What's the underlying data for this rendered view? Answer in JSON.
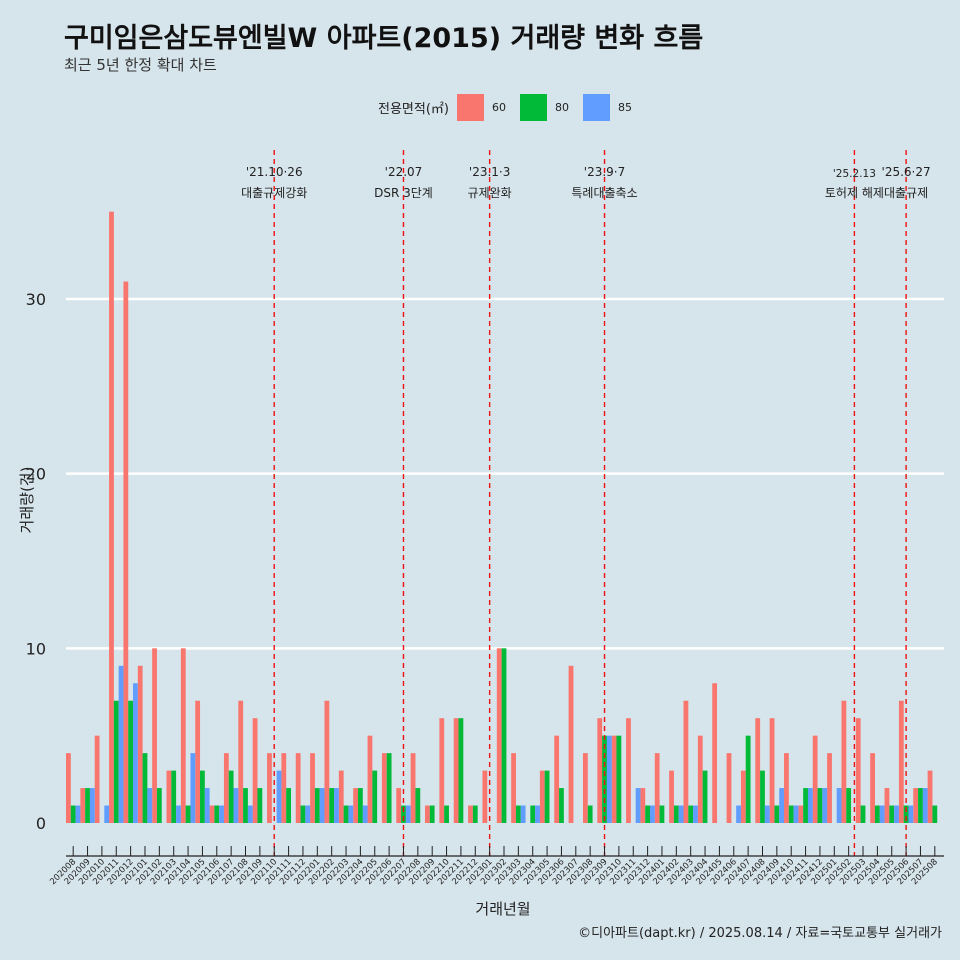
{
  "header": {
    "title": "구미임은삼도뷰엔빌W 아파트(2015) 거래량 변화 흐름",
    "subtitle": "최근 5년 한정 확대 차트"
  },
  "legend": {
    "title": "전용면적(㎡)",
    "items": [
      {
        "label": "60",
        "color": "#f8766d"
      },
      {
        "label": "80",
        "color": "#00ba38"
      },
      {
        "label": "85",
        "color": "#619cff"
      }
    ]
  },
  "caption": "©디아파트(dapt.kr) / 2025.08.14 / 자료=국토교통부 실거래가",
  "chart_data": {
    "type": "bar",
    "xlabel": "거래년월",
    "ylabel": "거래량(건)",
    "ylim": [
      0,
      36
    ],
    "yticks": [
      0,
      10,
      20,
      30
    ],
    "grid": true,
    "legend_position": "top",
    "categories": [
      "202008",
      "202009",
      "202010",
      "202011",
      "202012",
      "202101",
      "202102",
      "202103",
      "202104",
      "202105",
      "202106",
      "202107",
      "202108",
      "202109",
      "202110",
      "202111",
      "202112",
      "202201",
      "202202",
      "202203",
      "202204",
      "202205",
      "202206",
      "202207",
      "202208",
      "202209",
      "202210",
      "202211",
      "202212",
      "202301",
      "202302",
      "202303",
      "202304",
      "202305",
      "202306",
      "202307",
      "202308",
      "202309",
      "202310",
      "202311",
      "202312",
      "202401",
      "202402",
      "202403",
      "202404",
      "202405",
      "202406",
      "202407",
      "202408",
      "202409",
      "202410",
      "202411",
      "202412",
      "202501",
      "202502",
      "202503",
      "202504",
      "202505",
      "202506",
      "202507",
      "202508"
    ],
    "series": [
      {
        "name": "60",
        "color": "#f8766d",
        "values": [
          4,
          2,
          5,
          35,
          31,
          9,
          10,
          3,
          10,
          7,
          1,
          4,
          7,
          6,
          4,
          4,
          4,
          4,
          7,
          3,
          2,
          5,
          4,
          2,
          4,
          1,
          6,
          6,
          1,
          3,
          10,
          4,
          0,
          3,
          5,
          9,
          4,
          6,
          5,
          6,
          2,
          4,
          3,
          7,
          5,
          8,
          4,
          3,
          6,
          6,
          4,
          1,
          5,
          4,
          7,
          6,
          4,
          2,
          7,
          2,
          3
        ]
      },
      {
        "name": "80",
        "color": "#00ba38",
        "values": [
          1,
          2,
          0,
          7,
          7,
          4,
          2,
          3,
          1,
          3,
          1,
          3,
          2,
          2,
          0,
          2,
          1,
          2,
          2,
          1,
          2,
          3,
          4,
          1,
          2,
          1,
          1,
          6,
          1,
          0,
          10,
          1,
          1,
          3,
          2,
          0,
          1,
          5,
          5,
          0,
          1,
          1,
          1,
          1,
          3,
          0,
          0,
          5,
          3,
          1,
          1,
          2,
          2,
          0,
          2,
          1,
          1,
          1,
          1,
          2,
          1
        ]
      },
      {
        "name": "85",
        "color": "#619cff",
        "values": [
          1,
          2,
          1,
          9,
          8,
          2,
          0,
          1,
          4,
          2,
          1,
          2,
          1,
          0,
          3,
          0,
          1,
          2,
          2,
          1,
          1,
          0,
          0,
          1,
          0,
          0,
          0,
          0,
          0,
          0,
          0,
          1,
          1,
          0,
          0,
          0,
          0,
          5,
          0,
          2,
          1,
          0,
          1,
          1,
          0,
          0,
          1,
          0,
          1,
          2,
          1,
          2,
          2,
          2,
          0,
          0,
          1,
          1,
          1,
          2,
          0
        ]
      }
    ],
    "annotations": [
      {
        "label": "'21.10·26",
        "text": "대출규제강화",
        "at": "202110"
      },
      {
        "label": "'22.07",
        "text": "DSR 3단계",
        "at": "202207"
      },
      {
        "label": "'23.1·3",
        "text": "규제완화",
        "at": "202301"
      },
      {
        "label": "'23.9·7",
        "text": "특례대출축소",
        "at": "202309"
      },
      {
        "label": "'25.2.13",
        "text": "토허제 해제",
        "at": "202502"
      },
      {
        "label": "'25.6·27",
        "text": "대출규제",
        "at": "202506"
      }
    ]
  }
}
